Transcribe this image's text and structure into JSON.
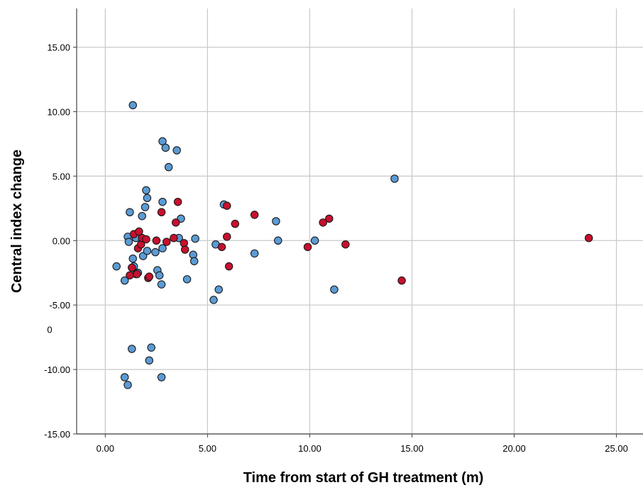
{
  "chart_data": {
    "type": "scatter",
    "title": "",
    "xlabel": "Time from start of GH treatment (m)",
    "ylabel": "Central index change",
    "xlim": [
      -1.4,
      26.3
    ],
    "ylim": [
      -15,
      18
    ],
    "x_ticks": [
      0,
      5,
      10,
      15,
      20,
      25
    ],
    "x_tick_labels": [
      "0.00",
      "5.00",
      "10.00",
      "15.00",
      "20.00",
      "25.00"
    ],
    "y_ticks": [
      -15,
      -10,
      -5,
      0,
      5,
      10,
      15
    ],
    "y_tick_labels": [
      "-15.00",
      "-10.00",
      "-5.00",
      "0.00",
      "5.00",
      "10.00",
      "15.00"
    ],
    "stray_label": {
      "text": "0",
      "x": -2.6,
      "y": -6.9
    },
    "grid": true,
    "series": [
      {
        "color": "#5b9bd5",
        "points": [
          [
            0.55,
            -2.0
          ],
          [
            0.95,
            -3.1
          ],
          [
            0.95,
            -10.6
          ],
          [
            1.1,
            -11.2
          ],
          [
            1.1,
            0.3
          ],
          [
            1.15,
            -0.1
          ],
          [
            1.2,
            2.2
          ],
          [
            1.3,
            -8.4
          ],
          [
            1.35,
            10.5
          ],
          [
            1.35,
            -1.4
          ],
          [
            1.4,
            -2.0
          ],
          [
            1.5,
            -2.6
          ],
          [
            1.5,
            0.2
          ],
          [
            1.6,
            -2.5
          ],
          [
            1.8,
            1.9
          ],
          [
            1.85,
            -1.2
          ],
          [
            1.95,
            2.6
          ],
          [
            2.0,
            3.9
          ],
          [
            2.05,
            3.3
          ],
          [
            2.05,
            -0.8
          ],
          [
            2.15,
            -9.3
          ],
          [
            2.25,
            -8.3
          ],
          [
            2.45,
            -0.9
          ],
          [
            2.55,
            -2.3
          ],
          [
            2.65,
            -2.7
          ],
          [
            2.75,
            -3.4
          ],
          [
            2.75,
            -10.6
          ],
          [
            2.8,
            3.0
          ],
          [
            2.8,
            -0.6
          ],
          [
            2.8,
            7.7
          ],
          [
            2.95,
            7.2
          ],
          [
            3.1,
            5.7
          ],
          [
            3.5,
            7.0
          ],
          [
            3.6,
            0.2
          ],
          [
            3.7,
            1.7
          ],
          [
            4.0,
            -3.0
          ],
          [
            4.3,
            -1.1
          ],
          [
            4.35,
            -1.6
          ],
          [
            4.4,
            0.15
          ],
          [
            5.3,
            -4.6
          ],
          [
            5.4,
            -0.3
          ],
          [
            5.55,
            -3.8
          ],
          [
            5.8,
            2.8
          ],
          [
            7.3,
            -1.0
          ],
          [
            8.35,
            1.5
          ],
          [
            8.45,
            0.0
          ],
          [
            10.25,
            0.0
          ],
          [
            11.2,
            -3.8
          ],
          [
            14.15,
            4.8
          ]
        ]
      },
      {
        "color": "#c8102e",
        "points": [
          [
            1.2,
            -2.7
          ],
          [
            1.3,
            -2.1
          ],
          [
            1.4,
            0.5
          ],
          [
            1.55,
            -2.6
          ],
          [
            1.6,
            -0.6
          ],
          [
            1.65,
            0.7
          ],
          [
            1.75,
            -0.3
          ],
          [
            1.8,
            0.2
          ],
          [
            2.0,
            0.1
          ],
          [
            2.1,
            -2.9
          ],
          [
            2.15,
            -2.8
          ],
          [
            2.5,
            0.0
          ],
          [
            2.75,
            2.2
          ],
          [
            3.0,
            -0.1
          ],
          [
            3.35,
            0.2
          ],
          [
            3.45,
            1.4
          ],
          [
            3.55,
            3.0
          ],
          [
            3.85,
            -0.2
          ],
          [
            3.9,
            -0.7
          ],
          [
            5.7,
            -0.5
          ],
          [
            5.95,
            2.7
          ],
          [
            5.95,
            0.3
          ],
          [
            6.05,
            -2.0
          ],
          [
            6.35,
            1.3
          ],
          [
            7.3,
            2.0
          ],
          [
            9.9,
            -0.5
          ],
          [
            10.65,
            1.4
          ],
          [
            10.95,
            1.7
          ],
          [
            11.75,
            -0.3
          ],
          [
            14.5,
            -3.1
          ],
          [
            23.65,
            0.2
          ]
        ]
      }
    ]
  }
}
